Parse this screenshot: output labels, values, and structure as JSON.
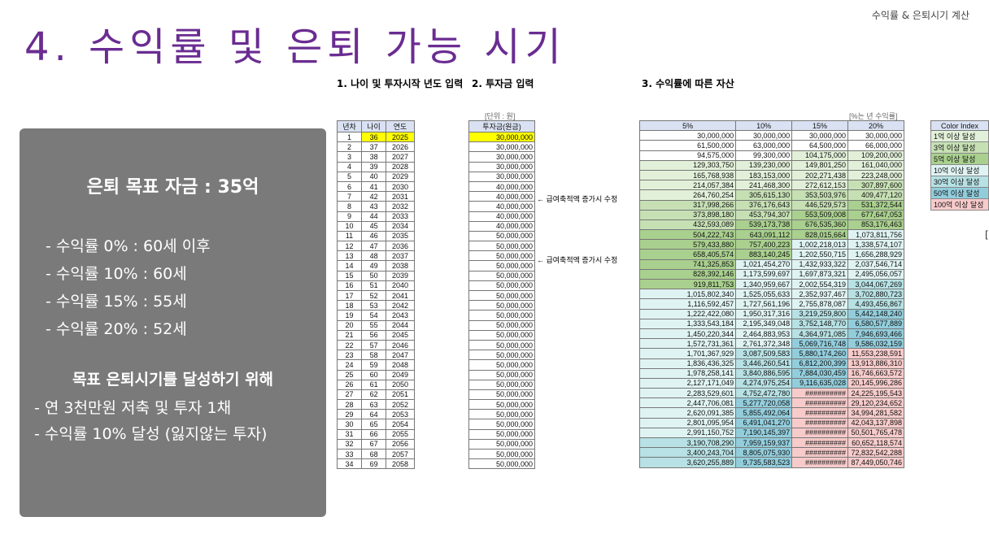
{
  "header": {
    "top_right": "수익률 & 은퇴시기 계산",
    "title": "4. 수익률 및 은퇴 가능 시기"
  },
  "sections": {
    "s1": "1. 나이 및 투자시작 년도 입력",
    "s2": "2. 투자금 입력",
    "s3": "3. 수익률에 따른 자산"
  },
  "panel": {
    "goal": "은퇴 목표 자금 : 35억",
    "rates": [
      "- 수익률   0% : 60세 이후",
      "- 수익률 10% : 60세",
      "- 수익률 15% : 55세",
      "- 수익률 20% : 52세"
    ],
    "subtitle": "목표 은퇴시기를 달성하기 위해",
    "plan": [
      "- 연 3천만원 저축 및 투자 1채",
      "- 수익률 10% 달성 (잃지않는 투자)"
    ]
  },
  "units": {
    "investment": "[단위 : 원]",
    "rate": "[%는 년 수익률]"
  },
  "age_table": {
    "headers": [
      "년차",
      "나이",
      "연도"
    ],
    "start_year": 1,
    "start_age": 36,
    "start_calendar_year": 2025
  },
  "investment_table": {
    "header": "투자금(원금)",
    "values": [
      "30,000,000",
      "30,000,000",
      "30,000,000",
      "30,000,000",
      "30,000,000",
      "40,000,000",
      "40,000,000",
      "40,000,000",
      "40,000,000",
      "40,000,000",
      "50,000,000",
      "50,000,000",
      "50,000,000",
      "50,000,000",
      "50,000,000",
      "50,000,000",
      "50,000,000",
      "50,000,000",
      "50,000,000",
      "50,000,000",
      "50,000,000",
      "50,000,000",
      "50,000,000",
      "50,000,000",
      "50,000,000",
      "50,000,000",
      "50,000,000",
      "50,000,000",
      "50,000,000",
      "50,000,000",
      "50,000,000",
      "50,000,000",
      "50,000,000",
      "50,000,000"
    ],
    "notes": [
      "← 급여축적액 증가시 수정",
      "← 급여축적액 증가시 수정"
    ]
  },
  "asset_table": {
    "headers": [
      "5%",
      "10%",
      "15%",
      "20%"
    ],
    "rows": [
      [
        "30,000,000",
        "30,000,000",
        "30,000,000",
        "30,000,000"
      ],
      [
        "61,500,000",
        "63,000,000",
        "64,500,000",
        "66,000,000"
      ],
      [
        "94,575,000",
        "99,300,000",
        "104,175,000",
        "109,200,000"
      ],
      [
        "129,303,750",
        "139,230,000",
        "149,801,250",
        "161,040,000"
      ],
      [
        "165,768,938",
        "183,153,000",
        "202,271,438",
        "223,248,000"
      ],
      [
        "214,057,384",
        "241,468,300",
        "272,612,153",
        "307,897,600"
      ],
      [
        "264,760,254",
        "305,615,130",
        "353,503,976",
        "409,477,120"
      ],
      [
        "317,998,266",
        "376,176,643",
        "446,529,573",
        "531,372,544"
      ],
      [
        "373,898,180",
        "453,794,307",
        "553,509,008",
        "677,647,053"
      ],
      [
        "432,593,089",
        "539,173,738",
        "676,535,360",
        "853,176,463"
      ],
      [
        "504,222,743",
        "643,091,112",
        "828,015,664",
        "1,073,811,756"
      ],
      [
        "579,433,880",
        "757,400,223",
        "1,002,218,013",
        "1,338,574,107"
      ],
      [
        "658,405,574",
        "883,140,245",
        "1,202,550,715",
        "1,656,288,929"
      ],
      [
        "741,325,853",
        "1,021,454,270",
        "1,432,933,322",
        "2,037,546,714"
      ],
      [
        "828,392,146",
        "1,173,599,697",
        "1,697,873,321",
        "2,495,056,057"
      ],
      [
        "919,811,753",
        "1,340,959,667",
        "2,002,554,319",
        "3,044,067,269"
      ],
      [
        "1,015,802,340",
        "1,525,055,633",
        "2,352,937,467",
        "3,702,880,723"
      ],
      [
        "1,116,592,457",
        "1,727,561,196",
        "2,755,878,087",
        "4,493,456,867"
      ],
      [
        "1,222,422,080",
        "1,950,317,316",
        "3,219,259,800",
        "5,442,148,240"
      ],
      [
        "1,333,543,184",
        "2,195,349,048",
        "3,752,148,770",
        "6,580,577,889"
      ],
      [
        "1,450,220,344",
        "2,464,883,953",
        "4,364,971,085",
        "7,946,693,466"
      ],
      [
        "1,572,731,361",
        "2,761,372,348",
        "5,069,716,748",
        "9,586,032,159"
      ],
      [
        "1,701,367,929",
        "3,087,509,583",
        "5,880,174,260",
        "11,553,238,591"
      ],
      [
        "1,836,436,325",
        "3,446,260,541",
        "6,812,200,399",
        "13,913,886,310"
      ],
      [
        "1,978,258,141",
        "3,840,886,595",
        "7,884,030,459",
        "16,746,663,572"
      ],
      [
        "2,127,171,049",
        "4,274,975,254",
        "9,116,635,028",
        "20,145,996,286"
      ],
      [
        "2,283,529,601",
        "4,752,472,780",
        "##########",
        "24,225,195,543"
      ],
      [
        "2,447,706,081",
        "5,277,720,058",
        "##########",
        "29,120,234,652"
      ],
      [
        "2,620,091,385",
        "5,855,492,064",
        "##########",
        "34,994,281,582"
      ],
      [
        "2,801,095,954",
        "6,491,041,270",
        "##########",
        "42,043,137,898"
      ],
      [
        "2,991,150,752",
        "7,190,145,397",
        "##########",
        "50,501,765,478"
      ],
      [
        "3,190,708,290",
        "7,959,159,937",
        "##########",
        "60,652,118,574"
      ],
      [
        "3,400,243,704",
        "8,805,075,930",
        "##########",
        "72,832,542,288"
      ],
      [
        "3,620,255,889",
        "9,735,583,523",
        "##########",
        "87,449,050,746"
      ]
    ]
  },
  "legend": {
    "header": "Color Index",
    "items": [
      {
        "label": "1억 이상 달성",
        "color": "#e2f0d9"
      },
      {
        "label": "3억 이상 달성",
        "color": "#c6e0b4"
      },
      {
        "label": "5억 이상 달성",
        "color": "#a9d08e"
      },
      {
        "label": "10억 이상 달성",
        "color": "#e0f3f3"
      },
      {
        "label": "30억 이상 달성",
        "color": "#b7e1e4"
      },
      {
        "label": "50억 이상 달성",
        "color": "#92cddc"
      },
      {
        "label": "100억 이상 달성",
        "color": "#f8cbcb"
      }
    ]
  },
  "colors": {
    "title": "#6a2c91",
    "panel": "#7a7a7a",
    "highlight": "#ffff00"
  }
}
